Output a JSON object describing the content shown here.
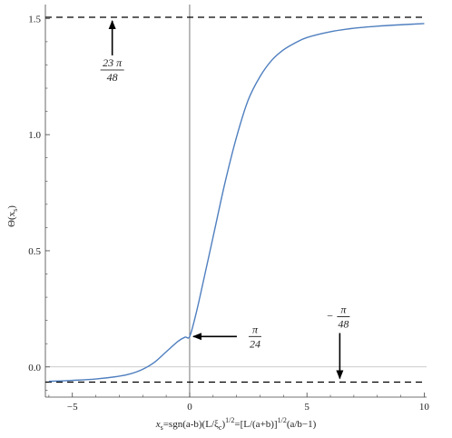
{
  "chart_data": {
    "type": "line",
    "title": "",
    "xlabel": {
      "prefix": "x",
      "sub": "s",
      "mid1": "=sgn(a-b)(L/ξ",
      "sub2": "c",
      "mid2": ")",
      "sup1": "1/2",
      "mid3": "=[L/(a+b)]",
      "sup2": "1/2",
      "suffix": "(a/b−1)"
    },
    "ylabel": {
      "prefix": "Θ(x",
      "sub": "s",
      "suffix": ")"
    },
    "xlim": [
      -6.15,
      10.1
    ],
    "ylim": [
      -0.13,
      1.56
    ],
    "x_ticks": [
      -5,
      0,
      5,
      10
    ],
    "x_tick_labels": [
      "−5",
      "0",
      "5",
      "10"
    ],
    "y_ticks": [
      0.0,
      0.5,
      1.0,
      1.5
    ],
    "y_tick_labels": [
      "0.0",
      "0.5",
      "1.0",
      "1.5"
    ],
    "grid": false,
    "series": [
      {
        "color": "#4f7fbf",
        "x": [
          -6.0,
          -5.0,
          -4.0,
          -3.0,
          -2.5,
          -2.0,
          -1.5,
          -1.0,
          -0.5,
          -0.2,
          0.0,
          0.25,
          0.5,
          1.0,
          1.5,
          2.0,
          2.5,
          3.0,
          3.5,
          4.0,
          4.5,
          5.0,
          6.0,
          7.0,
          8.0,
          9.0,
          10.0
        ],
        "y": [
          -0.062,
          -0.058,
          -0.052,
          -0.04,
          -0.029,
          -0.01,
          0.02,
          0.065,
          0.11,
          0.128,
          0.131,
          0.22,
          0.33,
          0.56,
          0.79,
          0.99,
          1.15,
          1.25,
          1.32,
          1.365,
          1.395,
          1.418,
          1.443,
          1.458,
          1.467,
          1.473,
          1.478
        ]
      }
    ],
    "asymptotes": [
      {
        "y": 1.5053,
        "style": "dashed"
      },
      {
        "y": -0.0654,
        "style": "dashed"
      }
    ],
    "reference_lines": [
      {
        "axis": "x",
        "value": 0
      },
      {
        "axis": "y",
        "value": 0
      }
    ],
    "annotations": [
      {
        "id": "upper",
        "numerator": "23 π",
        "denominator": "48",
        "x": -3.3,
        "y": 1.5053,
        "arrow": "up"
      },
      {
        "id": "mid",
        "numerator": "π",
        "denominator": "24",
        "x": 0.0,
        "y": 0.131,
        "arrow": "left"
      },
      {
        "id": "lower",
        "sign": "−",
        "numerator": "π",
        "denominator": "48",
        "x": 6.4,
        "y": -0.0654,
        "arrow": "down"
      }
    ]
  }
}
